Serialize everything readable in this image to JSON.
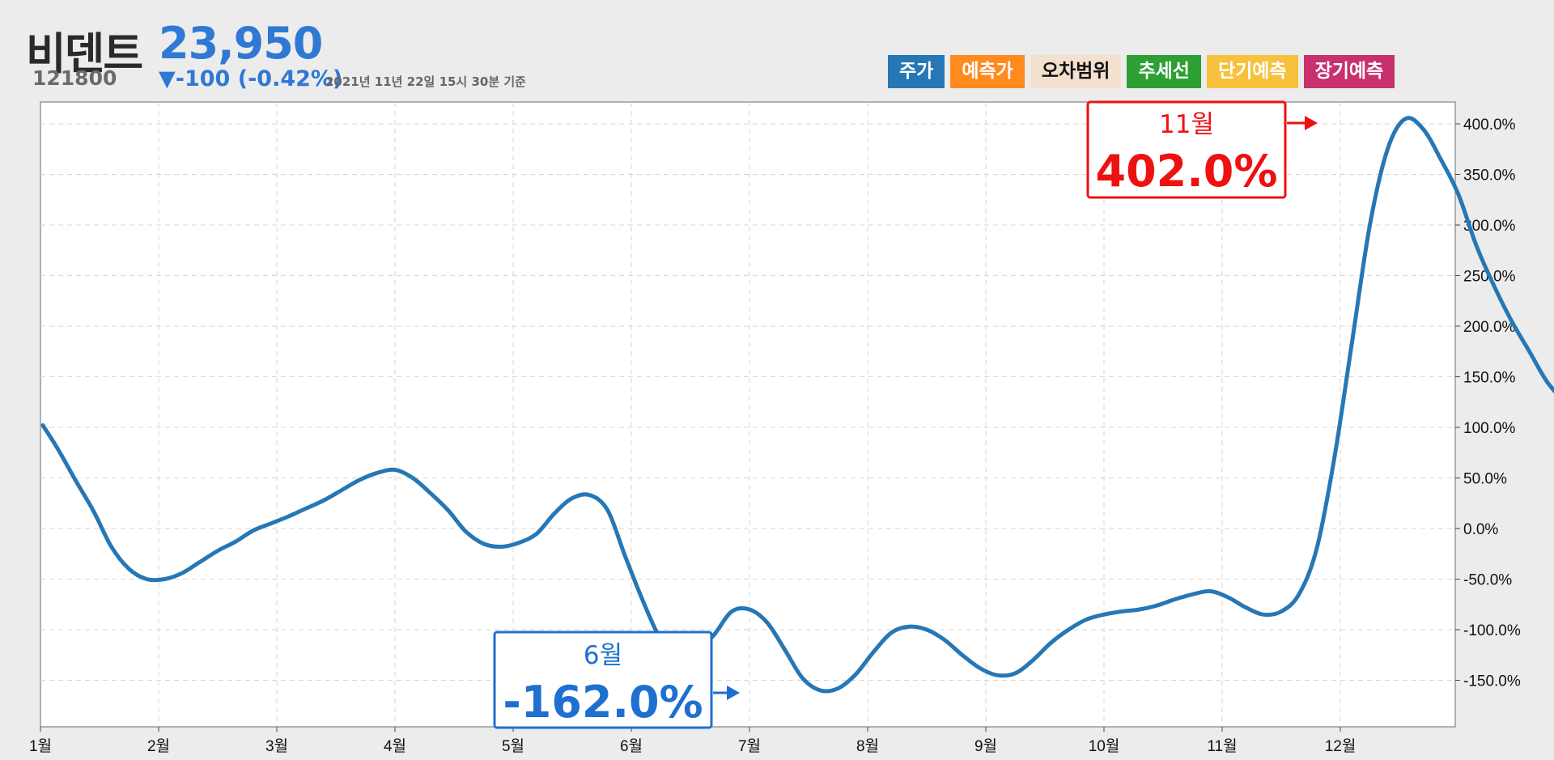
{
  "header": {
    "name": "비덴트",
    "price": "23,950",
    "code": "121800",
    "change": "▼-100 (-0.42%)",
    "timestamp": "2021년 11년 22일 15시 30분 기준"
  },
  "legend": [
    {
      "label": "주가",
      "bg": "#2677b5",
      "fg": "#ffffff"
    },
    {
      "label": "예측가",
      "bg": "#ff8a1e",
      "fg": "#ffffff"
    },
    {
      "label": "오차범위",
      "bg": "#f3e0cf",
      "fg": "#111111"
    },
    {
      "label": "추세선",
      "bg": "#2ca033",
      "fg": "#ffffff"
    },
    {
      "label": "단기예측",
      "bg": "#f7c13c",
      "fg": "#ffffff"
    },
    {
      "label": "장기예측",
      "bg": "#c8306e",
      "fg": "#ffffff"
    }
  ],
  "annotations": {
    "max": {
      "month": "11월",
      "value": "402.0%",
      "color": "#ee1111"
    },
    "min": {
      "month": "6월",
      "value": "-162.0%",
      "color": "#1f6fd0"
    }
  },
  "chart_data": {
    "type": "line",
    "x_unit": "month",
    "xticks": [
      "1월",
      "2월",
      "3월",
      "4월",
      "5월",
      "6월",
      "7월",
      "8월",
      "9월",
      "10월",
      "11월",
      "12월"
    ],
    "ylim": [
      -195,
      420
    ],
    "yticks": [
      400,
      350,
      300,
      250,
      200,
      150,
      100,
      50,
      0,
      -50,
      -100,
      -150
    ],
    "ytick_labels": [
      "400.0%",
      "350.0%",
      "300.0%",
      "250.0%",
      "200.0%",
      "150.0%",
      "100.0%",
      "50.0%",
      "0.0%",
      "-50.0%",
      "-100.0%",
      "-150.0%"
    ],
    "grid": true,
    "y_axis_side": "right",
    "line_color": "#2677b5",
    "series": [
      {
        "x": [
          0.02,
          0.15,
          0.3,
          0.45,
          0.6,
          0.75,
          0.9,
          1.05,
          1.2,
          1.35,
          1.5,
          1.65,
          1.8,
          1.95,
          2.1,
          2.25,
          2.4,
          2.55,
          2.7,
          2.85,
          3.0,
          3.15,
          3.3,
          3.45,
          3.6,
          3.75,
          3.9,
          4.05,
          4.2,
          4.35,
          4.5,
          4.65,
          4.8,
          4.95,
          5.1,
          5.25,
          5.4,
          5.55,
          5.7,
          5.85,
          6.0,
          6.15,
          6.3,
          6.45,
          6.6,
          6.75,
          6.9,
          7.05,
          7.2,
          7.35,
          7.5,
          7.65,
          7.8,
          7.95,
          8.1,
          8.25,
          8.4,
          8.55,
          8.7,
          8.85,
          9.0,
          9.15,
          9.3,
          9.45,
          9.6,
          9.75,
          9.9,
          10.05,
          10.2,
          10.35,
          10.5,
          10.65,
          10.8,
          10.95,
          11.1,
          11.25,
          11.4,
          11.55,
          11.7,
          11.85,
          12.0,
          12.15,
          12.3,
          12.45,
          12.6,
          12.75,
          12.9,
          13.0
        ],
        "y": [
          102,
          78,
          47,
          17,
          -18,
          -40,
          -50,
          -50,
          -44,
          -33,
          -22,
          -13,
          -2,
          5,
          12,
          20,
          28,
          38,
          48,
          55,
          58,
          50,
          35,
          18,
          -3,
          -15,
          -18,
          -14,
          -5,
          15,
          30,
          33,
          18,
          -28,
          -72,
          -110,
          -128,
          -122,
          -105,
          -82,
          -80,
          -93,
          -120,
          -148,
          -160,
          -158,
          -144,
          -122,
          -103,
          -97,
          -100,
          -110,
          -125,
          -138,
          -145,
          -143,
          -130,
          -113,
          -100,
          -90,
          -85,
          -82,
          -80,
          -76,
          -70,
          -65,
          -62,
          -68,
          -78,
          -85,
          -82,
          -65,
          -20,
          70,
          185,
          300,
          375,
          405,
          395,
          365,
          330,
          280,
          240,
          205,
          175,
          145,
          125,
          115
        ]
      }
    ]
  }
}
